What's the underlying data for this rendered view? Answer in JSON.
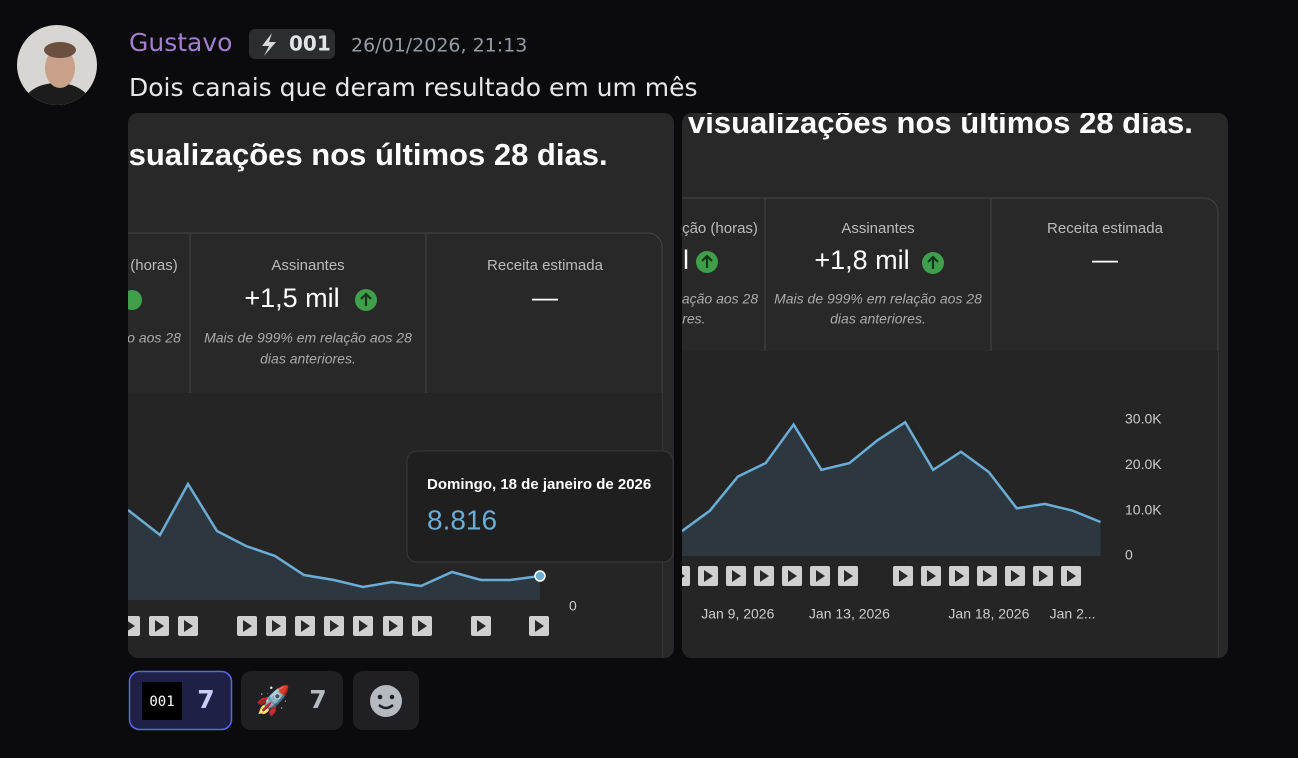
{
  "message": {
    "author": "Gustavo",
    "badge": "001",
    "timestamp": "26/01/2026, 21:13",
    "content": "Dois canais que deram resultado em um mês"
  },
  "attachments": [
    {
      "title": "isualizações nos últimos 28 dias.",
      "stats": [
        {
          "label": "(horas)",
          "note": [
            "o aos 28"
          ]
        },
        {
          "label": "Assinantes",
          "value": "+1,5 mil",
          "note": [
            "Mais de 999% em relação aos 28",
            "dias anteriores."
          ]
        },
        {
          "label": "Receita estimada",
          "value": "—"
        }
      ],
      "tooltip": {
        "date": "Domingo, 18 de janeiro de 2026",
        "value": "8.816"
      },
      "axis_zero": "0"
    },
    {
      "title": "visualizações nos últimos 28 dias.",
      "stats": [
        {
          "label": "ção (horas)",
          "value": "l",
          "note": [
            "ação aos 28",
            "ores."
          ]
        },
        {
          "label": "Assinantes",
          "value": "+1,8 mil",
          "note": [
            "Mais de 999% em relação aos 28",
            "dias anteriores."
          ]
        },
        {
          "label": "Receita estimada",
          "value": "—"
        }
      ],
      "chart": {
        "type": "line",
        "color": "#6aaed6",
        "categories": [
          null,
          null,
          "Jan 9, 2026",
          null,
          null,
          null,
          "Jan 13, 2026",
          null,
          null,
          null,
          null,
          "Jan 18, 2026",
          null,
          null,
          "Jan 2...",
          null
        ],
        "values": [
          5500,
          10000,
          17500,
          20500,
          29000,
          19000,
          20500,
          25500,
          29500,
          19000,
          23000,
          18500,
          10500,
          11500,
          10000,
          7500
        ],
        "ylim": [
          0,
          30000
        ],
        "yticks": [
          0,
          {
            "value": 10000,
            "label": "10.0K"
          },
          {
            "value": 20000,
            "label": "20.0K"
          },
          {
            "value": 30000,
            "label": "30.0K"
          }
        ]
      }
    }
  ],
  "reactions": [
    {
      "emoji": "001",
      "count": 7
    },
    {
      "emoji": "🚀",
      "count": 7
    }
  ]
}
